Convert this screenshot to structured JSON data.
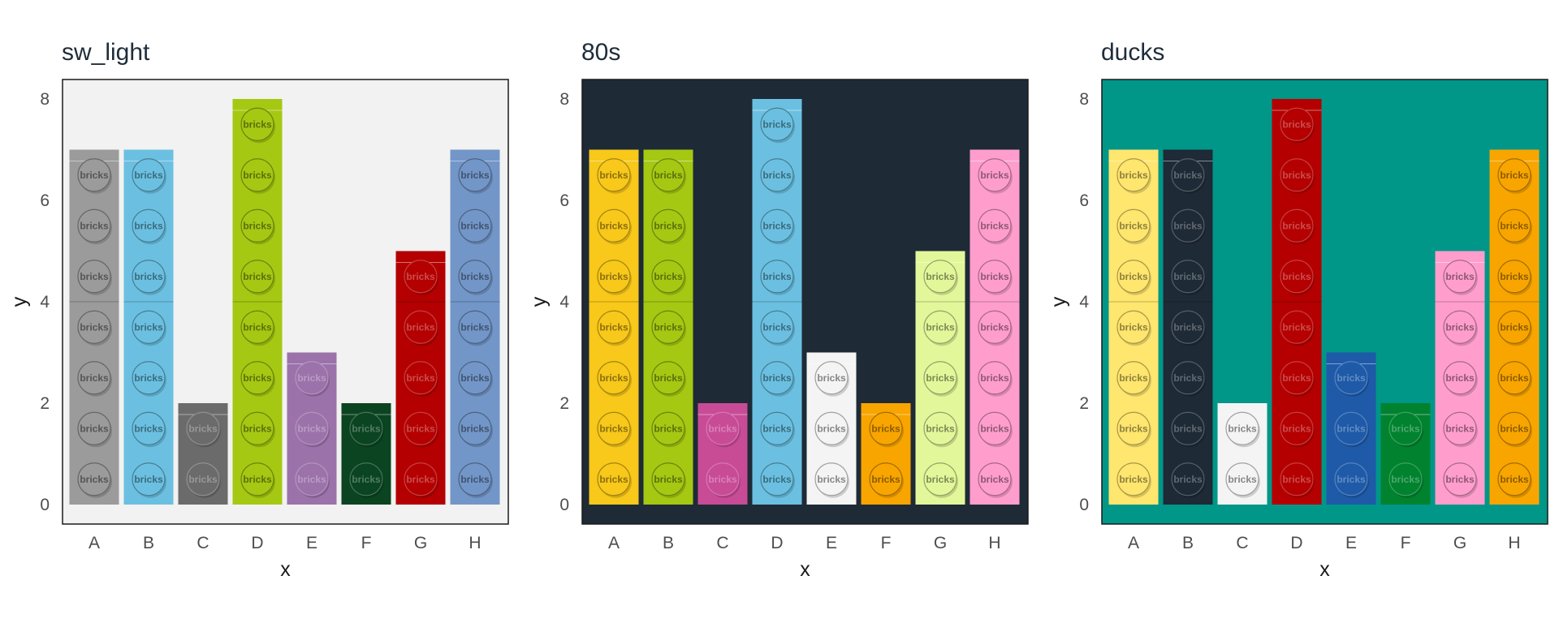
{
  "chart_data": [
    {
      "type": "bar",
      "title": "sw_light",
      "xlabel": "x",
      "ylabel": "y",
      "categories": [
        "A",
        "B",
        "C",
        "D",
        "E",
        "F",
        "G",
        "H"
      ],
      "values": [
        7,
        7,
        2,
        8,
        3,
        2,
        5,
        7
      ],
      "ylim": [
        0,
        8
      ],
      "yticks": [
        "0",
        "2",
        "4",
        "6",
        "8"
      ],
      "panel_background": "#f2f2f2",
      "bar_colors": [
        "#9b9b9b",
        "#6bc0e1",
        "#6b6b6b",
        "#a5c813",
        "#9b72aa",
        "#0b4420",
        "#b40000",
        "#7396c8"
      ],
      "stud_label": "bricks",
      "legend": "none",
      "grid": false
    },
    {
      "type": "bar",
      "title": "80s",
      "xlabel": "x",
      "ylabel": "y",
      "categories": [
        "A",
        "B",
        "C",
        "D",
        "E",
        "F",
        "G",
        "H"
      ],
      "values": [
        7,
        7,
        2,
        8,
        3,
        2,
        5,
        7
      ],
      "ylim": [
        0,
        8
      ],
      "yticks": [
        "0",
        "2",
        "4",
        "6",
        "8"
      ],
      "panel_background": "#1e2a36",
      "bar_colors": [
        "#f8c81a",
        "#a5c813",
        "#c84b96",
        "#6bc0e1",
        "#f4f4f4",
        "#f8a500",
        "#e2f79a",
        "#ff9ecd"
      ],
      "stud_label": "bricks",
      "legend": "none",
      "grid": false
    },
    {
      "type": "bar",
      "title": "ducks",
      "xlabel": "x",
      "ylabel": "y",
      "categories": [
        "A",
        "B",
        "C",
        "D",
        "E",
        "F",
        "G",
        "H"
      ],
      "values": [
        7,
        7,
        2,
        8,
        3,
        2,
        5,
        7
      ],
      "ylim": [
        0,
        8
      ],
      "yticks": [
        "0",
        "2",
        "4",
        "6",
        "8"
      ],
      "panel_background": "#009688",
      "bar_colors": [
        "#ffe66e",
        "#1e2a36",
        "#f4f4f4",
        "#b40000",
        "#1e5aa8",
        "#00822f",
        "#ff9ecd",
        "#f8a500"
      ],
      "stud_label": "bricks",
      "legend": "none",
      "grid": false
    }
  ]
}
